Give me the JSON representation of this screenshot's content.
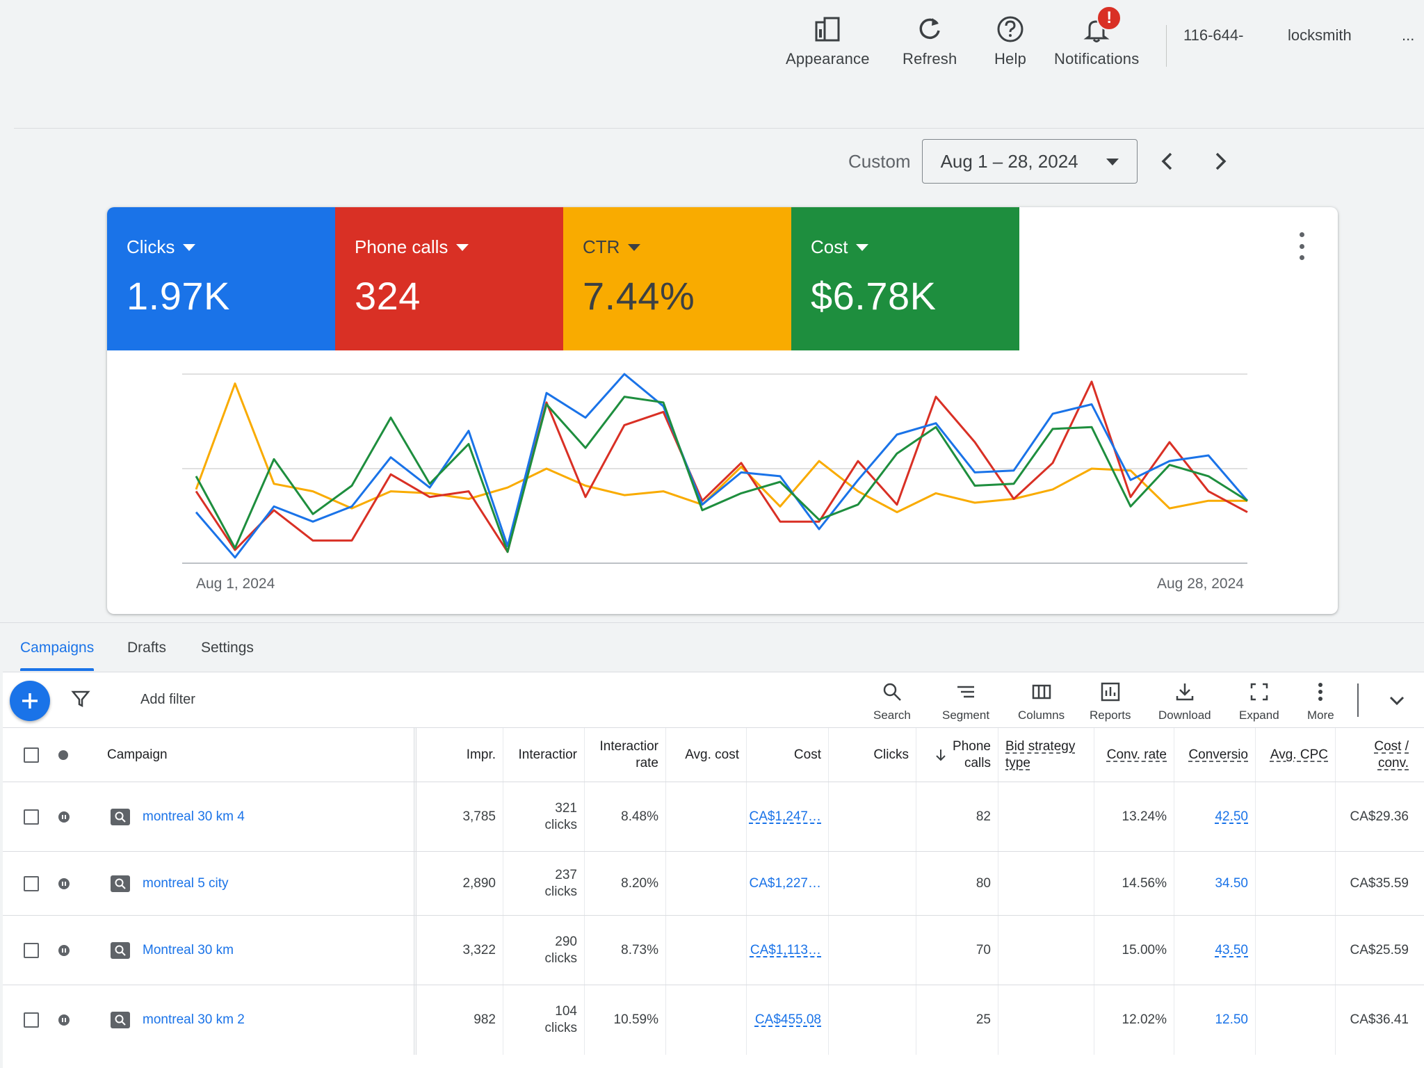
{
  "topbar": {
    "items": [
      {
        "label": "Appearance",
        "icon": "appearance-icon"
      },
      {
        "label": "Refresh",
        "icon": "refresh-icon"
      },
      {
        "label": "Help",
        "icon": "help-icon"
      },
      {
        "label": "Notifications",
        "icon": "notifications-icon",
        "badge": "!"
      }
    ],
    "account_id": "116-644-",
    "account_name": "locksmith",
    "account_more": "..."
  },
  "date_range": {
    "preset": "Custom",
    "value": "Aug 1 – 28, 2024"
  },
  "metrics": [
    {
      "label": "Clicks",
      "value": "1.97K",
      "color": "#1a73e8"
    },
    {
      "label": "Phone calls",
      "value": "324",
      "color": "#d93025"
    },
    {
      "label": "CTR",
      "value": "7.44%",
      "color": "#f9ab00"
    },
    {
      "label": "Cost",
      "value": "$6.78K",
      "color": "#1e8e3e"
    }
  ],
  "chart_data": {
    "type": "line",
    "x": [
      "Aug 1",
      "Aug 2",
      "Aug 3",
      "Aug 4",
      "Aug 5",
      "Aug 6",
      "Aug 7",
      "Aug 8",
      "Aug 9",
      "Aug 10",
      "Aug 11",
      "Aug 12",
      "Aug 13",
      "Aug 14",
      "Aug 15",
      "Aug 16",
      "Aug 17",
      "Aug 18",
      "Aug 19",
      "Aug 20",
      "Aug 21",
      "Aug 22",
      "Aug 23",
      "Aug 24",
      "Aug 25",
      "Aug 26",
      "Aug 27",
      "Aug 28"
    ],
    "x_tick_labels": [
      "Aug 1, 2024",
      "Aug 28, 2024"
    ],
    "ylim": [
      0,
      100
    ],
    "grid": true,
    "series": [
      {
        "name": "Clicks",
        "color": "#1a73e8",
        "values": [
          27,
          3,
          30,
          22,
          30,
          56,
          40,
          70,
          9,
          90,
          77,
          100,
          83,
          31,
          48,
          46,
          18,
          44,
          68,
          74,
          48,
          49,
          79,
          84,
          44,
          54,
          57,
          33
        ]
      },
      {
        "name": "Phone calls",
        "color": "#d93025",
        "values": [
          38,
          7,
          28,
          12,
          12,
          47,
          35,
          38,
          6,
          85,
          35,
          73,
          80,
          33,
          53,
          22,
          22,
          54,
          31,
          88,
          64,
          34,
          53,
          96,
          35,
          64,
          38,
          27
        ]
      },
      {
        "name": "CTR",
        "color": "#f9ab00",
        "values": [
          39,
          95,
          42,
          38,
          29,
          38,
          37,
          34,
          40,
          50,
          41,
          36,
          38,
          31,
          51,
          30,
          54,
          38,
          27,
          37,
          32,
          34,
          39,
          50,
          49,
          29,
          33,
          33
        ]
      },
      {
        "name": "Cost",
        "color": "#1e8e3e",
        "values": [
          46,
          8,
          55,
          26,
          41,
          77,
          42,
          63,
          6,
          84,
          61,
          88,
          85,
          28,
          37,
          43,
          23,
          31,
          58,
          72,
          41,
          42,
          71,
          72,
          30,
          52,
          46,
          33
        ]
      }
    ]
  },
  "tabs": [
    {
      "label": "Campaigns",
      "active": true
    },
    {
      "label": "Drafts",
      "active": false
    },
    {
      "label": "Settings",
      "active": false
    }
  ],
  "toolbar": {
    "add_filter": "Add filter",
    "tools": [
      {
        "label": "Search",
        "icon": "search-icon"
      },
      {
        "label": "Segment",
        "icon": "segment-icon"
      },
      {
        "label": "Columns",
        "icon": "columns-icon"
      },
      {
        "label": "Reports",
        "icon": "reports-icon"
      },
      {
        "label": "Download",
        "icon": "download-icon"
      },
      {
        "label": "Expand",
        "icon": "expand-icon"
      },
      {
        "label": "More",
        "icon": "more-vert-icon"
      }
    ]
  },
  "table": {
    "headers": {
      "campaign": "Campaign",
      "impr": "Impr.",
      "interactions": "Interactior",
      "interaction_rate_1": "Interactior",
      "interaction_rate_2": "ratе",
      "avg_cost": "Avg. cost",
      "cost": "Cost",
      "clicks": "Clicks",
      "phone_calls_1": "Phone",
      "phone_calls_2": "calls",
      "bid_strategy_1": "Bid strategy",
      "bid_strategy_2": "type",
      "conv_rate": "Conv. rate",
      "conversions": "Conversio",
      "avg_cpc": "Avg. CPC",
      "cost_conv_1": "Cost /",
      "cost_conv_2": "conv."
    },
    "rows": [
      {
        "campaign": "montreal 30 km 4",
        "impr": "3,785",
        "interactions_n": "321",
        "interactions_u": "clicks",
        "interaction_rate": "8.48%",
        "cost": "CA$1,247…",
        "phone_calls": "82",
        "conv_rate": "13.24%",
        "conversions": "42.50",
        "conversions_dashed": true,
        "cost_conv": "CA$29.36"
      },
      {
        "campaign": "montreal 5 city",
        "impr": "2,890",
        "interactions_n": "237",
        "interactions_u": "clicks",
        "interaction_rate": "8.20%",
        "cost": "CA$1,227…",
        "phone_calls": "80",
        "conv_rate": "14.56%",
        "conversions": "34.50",
        "conversions_dashed": false,
        "cost_conv": "CA$35.59"
      },
      {
        "campaign": "Montreal 30 km",
        "impr": "3,322",
        "interactions_n": "290",
        "interactions_u": "clicks",
        "interaction_rate": "8.73%",
        "cost": "CA$1,113…",
        "phone_calls": "70",
        "conv_rate": "15.00%",
        "conversions": "43.50",
        "conversions_dashed": true,
        "cost_conv": "CA$25.59"
      },
      {
        "campaign": "montreal 30 km 2",
        "impr": "982",
        "interactions_n": "104",
        "interactions_u": "clicks",
        "interaction_rate": "10.59%",
        "cost": "CA$455.08",
        "phone_calls": "25",
        "conv_rate": "12.02%",
        "conversions": "12.50",
        "conversions_dashed": false,
        "cost_conv": "CA$36.41"
      }
    ]
  }
}
